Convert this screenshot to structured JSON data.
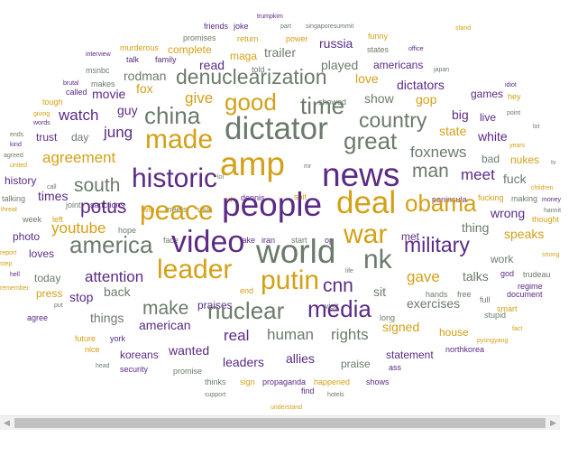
{
  "colors": {
    "purple": "#5b2a86",
    "gold": "#d4a017",
    "gray": "#6b7b6b",
    "background": "#ffffff",
    "scrollbar_track": "#f1f1f1",
    "scrollbar_thumb": "#c1c1c1"
  },
  "icons": {
    "scroll_left": "triangle-left-icon",
    "scroll_right": "triangle-right-icon"
  },
  "chart_data": {
    "type": "wordcloud",
    "words": [
      {
        "text": "trumpkim",
        "weight": 1,
        "color": "purple"
      },
      {
        "text": "friends",
        "weight": 2,
        "color": "purple"
      },
      {
        "text": "joke",
        "weight": 2,
        "color": "purple"
      },
      {
        "text": "part",
        "weight": 1,
        "color": "gray"
      },
      {
        "text": "singaporesummit",
        "weight": 1,
        "color": "gray"
      },
      {
        "text": "stand",
        "weight": 1,
        "color": "gold"
      },
      {
        "text": "interview",
        "weight": 1,
        "color": "purple"
      },
      {
        "text": "murderous",
        "weight": 2,
        "color": "gold"
      },
      {
        "text": "promises",
        "weight": 2,
        "color": "gray"
      },
      {
        "text": "return",
        "weight": 2,
        "color": "gold"
      },
      {
        "text": "power",
        "weight": 2,
        "color": "gold"
      },
      {
        "text": "funny",
        "weight": 2,
        "color": "gold"
      },
      {
        "text": "office",
        "weight": 1,
        "color": "purple"
      },
      {
        "text": "talk",
        "weight": 2,
        "color": "purple"
      },
      {
        "text": "family",
        "weight": 2,
        "color": "purple"
      },
      {
        "text": "complete",
        "weight": 3,
        "color": "gold"
      },
      {
        "text": "maga",
        "weight": 3,
        "color": "gold"
      },
      {
        "text": "trailer",
        "weight": 4,
        "color": "gray"
      },
      {
        "text": "russia",
        "weight": 4,
        "color": "purple"
      },
      {
        "text": "states",
        "weight": 2,
        "color": "gray"
      },
      {
        "text": "msnbc",
        "weight": 2,
        "color": "gray"
      },
      {
        "text": "read",
        "weight": 4,
        "color": "purple"
      },
      {
        "text": "told",
        "weight": 2,
        "color": "gray"
      },
      {
        "text": "played",
        "weight": 4,
        "color": "gray"
      },
      {
        "text": "americans",
        "weight": 3,
        "color": "purple"
      },
      {
        "text": "japan",
        "weight": 1,
        "color": "gray"
      },
      {
        "text": "brutal",
        "weight": 1,
        "color": "purple"
      },
      {
        "text": "makes",
        "weight": 2,
        "color": "gray"
      },
      {
        "text": "rodman",
        "weight": 4,
        "color": "gray"
      },
      {
        "text": "denuclearization",
        "weight": 7,
        "color": "gray"
      },
      {
        "text": "love",
        "weight": 4,
        "color": "gold"
      },
      {
        "text": "idiot",
        "weight": 1,
        "color": "purple"
      },
      {
        "text": "called",
        "weight": 2,
        "color": "purple"
      },
      {
        "text": "fox",
        "weight": 4,
        "color": "gold"
      },
      {
        "text": "dictators",
        "weight": 4,
        "color": "purple"
      },
      {
        "text": "hey",
        "weight": 2,
        "color": "gold"
      },
      {
        "text": "movie",
        "weight": 4,
        "color": "purple"
      },
      {
        "text": "give",
        "weight": 5,
        "color": "gold"
      },
      {
        "text": "good",
        "weight": 8,
        "color": "gold"
      },
      {
        "text": "showed",
        "weight": 2,
        "color": "gray"
      },
      {
        "text": "show",
        "weight": 4,
        "color": "gray"
      },
      {
        "text": "gop",
        "weight": 4,
        "color": "gold"
      },
      {
        "text": "games",
        "weight": 3,
        "color": "purple"
      },
      {
        "text": "tough",
        "weight": 2,
        "color": "gold"
      },
      {
        "text": "time",
        "weight": 8,
        "color": "gray"
      },
      {
        "text": "point",
        "weight": 1,
        "color": "gray"
      },
      {
        "text": "giving",
        "weight": 1,
        "color": "gold"
      },
      {
        "text": "guy",
        "weight": 4,
        "color": "purple"
      },
      {
        "text": "watch",
        "weight": 5,
        "color": "purple"
      },
      {
        "text": "china",
        "weight": 8,
        "color": "gray"
      },
      {
        "text": "big",
        "weight": 4,
        "color": "purple"
      },
      {
        "text": "live",
        "weight": 3,
        "color": "purple"
      },
      {
        "text": "words",
        "weight": 1,
        "color": "purple"
      },
      {
        "text": "country",
        "weight": 7,
        "color": "gray"
      },
      {
        "text": "state",
        "weight": 4,
        "color": "gold"
      },
      {
        "text": "lot",
        "weight": 1,
        "color": "gray"
      },
      {
        "text": "ends",
        "weight": 1,
        "color": "gray"
      },
      {
        "text": "jung",
        "weight": 5,
        "color": "purple"
      },
      {
        "text": "dictator",
        "weight": 10,
        "color": "gray"
      },
      {
        "text": "years",
        "weight": 1,
        "color": "gold"
      },
      {
        "text": "trust",
        "weight": 3,
        "color": "purple"
      },
      {
        "text": "day",
        "weight": 3,
        "color": "gray"
      },
      {
        "text": "white",
        "weight": 4,
        "color": "purple"
      },
      {
        "text": "kind",
        "weight": 1,
        "color": "purple"
      },
      {
        "text": "made",
        "weight": 9,
        "color": "gold"
      },
      {
        "text": "great",
        "weight": 8,
        "color": "gray"
      },
      {
        "text": "agreed",
        "weight": 1,
        "color": "gray"
      },
      {
        "text": "foxnews",
        "weight": 5,
        "color": "gray"
      },
      {
        "text": "tv",
        "weight": 1,
        "color": "gray"
      },
      {
        "text": "agreement",
        "weight": 5,
        "color": "gold"
      },
      {
        "text": "nukes",
        "weight": 3,
        "color": "gold"
      },
      {
        "text": "bad",
        "weight": 3,
        "color": "gray"
      },
      {
        "text": "united",
        "weight": 1,
        "color": "gold"
      },
      {
        "text": "amp",
        "weight": 12,
        "color": "gold"
      },
      {
        "text": "mr",
        "weight": 1,
        "color": "gray"
      },
      {
        "text": "man",
        "weight": 6,
        "color": "gray"
      },
      {
        "text": "meet",
        "weight": 5,
        "color": "purple"
      },
      {
        "text": "fuck",
        "weight": 4,
        "color": "gray"
      },
      {
        "text": "history",
        "weight": 3,
        "color": "purple"
      },
      {
        "text": "call",
        "weight": 1,
        "color": "gray"
      },
      {
        "text": "news",
        "weight": 12,
        "color": "purple"
      },
      {
        "text": "children",
        "weight": 1,
        "color": "gold"
      },
      {
        "text": "times",
        "weight": 4,
        "color": "purple"
      },
      {
        "text": "south",
        "weight": 6,
        "color": "gray"
      },
      {
        "text": "historic",
        "weight": 9,
        "color": "purple"
      },
      {
        "text": "lol",
        "weight": 1,
        "color": "gray"
      },
      {
        "text": "making",
        "weight": 2,
        "color": "gray"
      },
      {
        "text": "talking",
        "weight": 2,
        "color": "gray"
      },
      {
        "text": "joint",
        "weight": 2,
        "color": "gray"
      },
      {
        "text": "sanctions",
        "weight": 2,
        "color": "purple"
      },
      {
        "text": "xi",
        "weight": 2,
        "color": "gold"
      },
      {
        "text": "dennis",
        "weight": 2,
        "color": "purple"
      },
      {
        "text": "shit",
        "weight": 2,
        "color": "gold"
      },
      {
        "text": "peninsula",
        "weight": 2,
        "color": "purple"
      },
      {
        "text": "fucking",
        "weight": 2,
        "color": "gold"
      },
      {
        "text": "money",
        "weight": 1,
        "color": "purple"
      },
      {
        "text": "threat",
        "weight": 1,
        "color": "gold"
      },
      {
        "text": "potus",
        "weight": 6,
        "color": "purple"
      },
      {
        "text": "win",
        "weight": 2,
        "color": "gold"
      },
      {
        "text": "meets",
        "weight": 2,
        "color": "gray"
      },
      {
        "text": "usa",
        "weight": 2,
        "color": "gray"
      },
      {
        "text": "hannit",
        "weight": 1,
        "color": "gray"
      },
      {
        "text": "week",
        "weight": 2,
        "color": "gray"
      },
      {
        "text": "left",
        "weight": 2,
        "color": "gold"
      },
      {
        "text": "deal",
        "weight": 10,
        "color": "gold"
      },
      {
        "text": "wrong",
        "weight": 4,
        "color": "purple"
      },
      {
        "text": "thought",
        "weight": 2,
        "color": "gold"
      },
      {
        "text": "peace",
        "weight": 9,
        "color": "gold"
      },
      {
        "text": "people",
        "weight": 12,
        "color": "purple"
      },
      {
        "text": "obama",
        "weight": 8,
        "color": "gold"
      },
      {
        "text": "hope",
        "weight": 2,
        "color": "gray"
      },
      {
        "text": "thing",
        "weight": 4,
        "color": "gray"
      },
      {
        "text": "photo",
        "weight": 3,
        "color": "purple"
      },
      {
        "text": "youtube",
        "weight": 5,
        "color": "gold"
      },
      {
        "text": "face",
        "weight": 2,
        "color": "gray"
      },
      {
        "text": "fake",
        "weight": 2,
        "color": "purple"
      },
      {
        "text": "iran",
        "weight": 2,
        "color": "purple"
      },
      {
        "text": "start",
        "weight": 2,
        "color": "gray"
      },
      {
        "text": "op",
        "weight": 2,
        "color": "purple"
      },
      {
        "text": "met",
        "weight": 3,
        "color": "purple"
      },
      {
        "text": "speaks",
        "weight": 4,
        "color": "gold"
      },
      {
        "text": "video",
        "weight": 11,
        "color": "purple"
      },
      {
        "text": "war",
        "weight": 9,
        "color": "gold"
      },
      {
        "text": "america",
        "weight": 8,
        "color": "gray"
      },
      {
        "text": "military",
        "weight": 7,
        "color": "purple"
      },
      {
        "text": "work",
        "weight": 3,
        "color": "gray"
      },
      {
        "text": "strong",
        "weight": 1,
        "color": "gold"
      },
      {
        "text": "report",
        "weight": 1,
        "color": "gold"
      },
      {
        "text": "loves",
        "weight": 3,
        "color": "purple"
      },
      {
        "text": "world",
        "weight": 12,
        "color": "gray"
      },
      {
        "text": "step",
        "weight": 1,
        "color": "gold"
      },
      {
        "text": "god",
        "weight": 2,
        "color": "purple"
      },
      {
        "text": "attention",
        "weight": 5,
        "color": "purple"
      },
      {
        "text": "life",
        "weight": 1,
        "color": "gray"
      },
      {
        "text": "nk",
        "weight": 9,
        "color": "gray"
      },
      {
        "text": "trudeau",
        "weight": 2,
        "color": "gray"
      },
      {
        "text": "hell",
        "weight": 1,
        "color": "purple"
      },
      {
        "text": "leader",
        "weight": 9,
        "color": "gold"
      },
      {
        "text": "talks",
        "weight": 4,
        "color": "gray"
      },
      {
        "text": "gave",
        "weight": 5,
        "color": "gold"
      },
      {
        "text": "today",
        "weight": 3,
        "color": "gray"
      },
      {
        "text": "remember",
        "weight": 1,
        "color": "gold"
      },
      {
        "text": "regime",
        "weight": 2,
        "color": "purple"
      },
      {
        "text": "back",
        "weight": 4,
        "color": "gray"
      },
      {
        "text": "end",
        "weight": 2,
        "color": "gold"
      },
      {
        "text": "putin",
        "weight": 9,
        "color": "gold"
      },
      {
        "text": "cnn",
        "weight": 6,
        "color": "purple"
      },
      {
        "text": "sit",
        "weight": 4,
        "color": "gray"
      },
      {
        "text": "press",
        "weight": 3,
        "color": "gold"
      },
      {
        "text": "hands",
        "weight": 2,
        "color": "gray"
      },
      {
        "text": "free",
        "weight": 2,
        "color": "gray"
      },
      {
        "text": "document",
        "weight": 2,
        "color": "purple"
      },
      {
        "text": "stop",
        "weight": 4,
        "color": "purple"
      },
      {
        "text": "full",
        "weight": 2,
        "color": "gray"
      },
      {
        "text": "visit",
        "weight": 2,
        "color": "gray"
      },
      {
        "text": "exercises",
        "weight": 4,
        "color": "gray"
      },
      {
        "text": "smart",
        "weight": 2,
        "color": "gold"
      },
      {
        "text": "make",
        "weight": 6,
        "color": "gray"
      },
      {
        "text": "put",
        "weight": 1,
        "color": "gray"
      },
      {
        "text": "praises",
        "weight": 3,
        "color": "purple"
      },
      {
        "text": "nuclear",
        "weight": 8,
        "color": "gray"
      },
      {
        "text": "media",
        "weight": 8,
        "color": "purple"
      },
      {
        "text": "agree",
        "weight": 2,
        "color": "purple"
      },
      {
        "text": "things",
        "weight": 4,
        "color": "gray"
      },
      {
        "text": "long",
        "weight": 2,
        "color": "gray"
      },
      {
        "text": "stupid",
        "weight": 2,
        "color": "gray"
      },
      {
        "text": "fact",
        "weight": 1,
        "color": "gold"
      },
      {
        "text": "signed",
        "weight": 4,
        "color": "gold"
      },
      {
        "text": "american",
        "weight": 4,
        "color": "purple"
      },
      {
        "text": "future",
        "weight": 2,
        "color": "gold"
      },
      {
        "text": "york",
        "weight": 2,
        "color": "purple"
      },
      {
        "text": "real",
        "weight": 5,
        "color": "purple"
      },
      {
        "text": "human",
        "weight": 5,
        "color": "gray"
      },
      {
        "text": "rights",
        "weight": 5,
        "color": "gray"
      },
      {
        "text": "house",
        "weight": 3,
        "color": "gold"
      },
      {
        "text": "pyongyang",
        "weight": 1,
        "color": "gold"
      },
      {
        "text": "nice",
        "weight": 2,
        "color": "gold"
      },
      {
        "text": "koreans",
        "weight": 3,
        "color": "purple"
      },
      {
        "text": "northkorea",
        "weight": 2,
        "color": "purple"
      },
      {
        "text": "wanted",
        "weight": 4,
        "color": "purple"
      },
      {
        "text": "statement",
        "weight": 3,
        "color": "purple"
      },
      {
        "text": "head",
        "weight": 1,
        "color": "gray"
      },
      {
        "text": "allies",
        "weight": 4,
        "color": "purple"
      },
      {
        "text": "praise",
        "weight": 3,
        "color": "gray"
      },
      {
        "text": "security",
        "weight": 2,
        "color": "purple"
      },
      {
        "text": "promise",
        "weight": 2,
        "color": "gray"
      },
      {
        "text": "leaders",
        "weight": 4,
        "color": "purple"
      },
      {
        "text": "ass",
        "weight": 2,
        "color": "purple"
      },
      {
        "text": "thinks",
        "weight": 2,
        "color": "gray"
      },
      {
        "text": "sign",
        "weight": 2,
        "color": "gold"
      },
      {
        "text": "propaganda",
        "weight": 2,
        "color": "purple"
      },
      {
        "text": "happened",
        "weight": 2,
        "color": "gold"
      },
      {
        "text": "shows",
        "weight": 2,
        "color": "purple"
      },
      {
        "text": "support",
        "weight": 1,
        "color": "gray"
      },
      {
        "text": "find",
        "weight": 2,
        "color": "purple"
      },
      {
        "text": "hotels",
        "weight": 1,
        "color": "gray"
      },
      {
        "text": "understand",
        "weight": 1,
        "color": "gold"
      }
    ]
  }
}
